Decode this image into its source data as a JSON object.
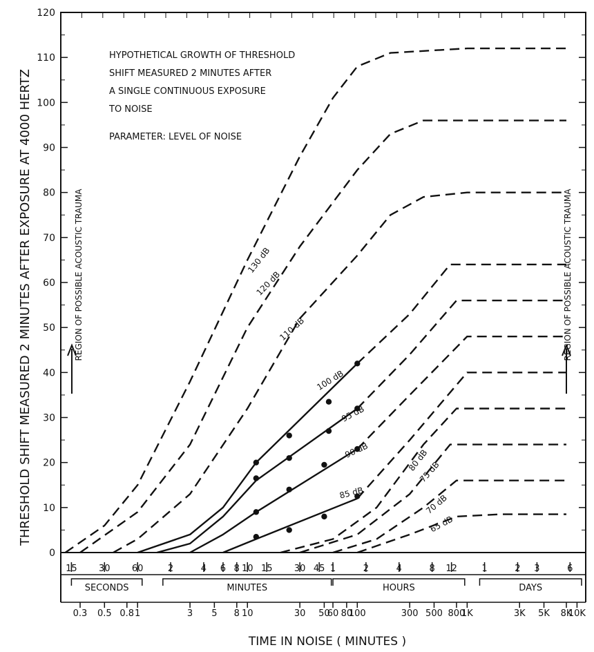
{
  "chart_data": {
    "type": "line",
    "title": "",
    "annotation": [
      "HYPOTHETICAL GROWTH OF THRESHOLD",
      "SHIFT MEASURED 2 MINUTES AFTER",
      "A SINGLE CONTINUOUS EXPOSURE",
      "TO NOISE"
    ],
    "parameter_note": "PARAMETER: LEVEL OF NOISE",
    "ylabel": "THRESHOLD SHIFT MEASURED 2 MINUTES AFTER EXPOSURE AT 4000 HERTZ",
    "xlabel": "TIME IN NOISE ( MINUTES )",
    "y_scale": "linear",
    "x_scale": "log",
    "ylim": [
      0,
      120
    ],
    "xlim": [
      0.2,
      12000
    ],
    "y_ticks": [
      "0",
      "10",
      "20",
      "30",
      "40",
      "50",
      "60",
      "70",
      "80",
      "90",
      "100",
      "110",
      "120"
    ],
    "x_ticks_minutes": [
      {
        "x": 0.3,
        "label": "0.3"
      },
      {
        "x": 0.5,
        "label": "0.5"
      },
      {
        "x": 0.8,
        "label": "0.8"
      },
      {
        "x": 1,
        "label": "1"
      },
      {
        "x": 3,
        "label": "3"
      },
      {
        "x": 5,
        "label": "5"
      },
      {
        "x": 8,
        "label": "8"
      },
      {
        "x": 10,
        "label": "10"
      },
      {
        "x": 30,
        "label": "30"
      },
      {
        "x": 50,
        "label": "50"
      },
      {
        "x": 60,
        "label": "60"
      },
      {
        "x": 80,
        "label": "80"
      },
      {
        "x": 100,
        "label": "100"
      },
      {
        "x": 300,
        "label": "300"
      },
      {
        "x": 500,
        "label": "500"
      },
      {
        "x": 800,
        "label": "800"
      },
      {
        "x": 1000,
        "label": "1K"
      },
      {
        "x": 3000,
        "label": "3K"
      },
      {
        "x": 5000,
        "label": "5K"
      },
      {
        "x": 8000,
        "label": "8K"
      },
      {
        "x": 10000,
        "label": "10K"
      }
    ],
    "time_scale": [
      {
        "x": 0.25,
        "label": "15"
      },
      {
        "x": 0.5,
        "label": "30"
      },
      {
        "x": 1,
        "label": "60"
      },
      {
        "x": 2,
        "label": "2"
      },
      {
        "x": 4,
        "label": "4"
      },
      {
        "x": 6,
        "label": "6"
      },
      {
        "x": 8,
        "label": "8"
      },
      {
        "x": 10,
        "label": "10"
      },
      {
        "x": 15,
        "label": "15"
      },
      {
        "x": 30,
        "label": "30"
      },
      {
        "x": 45,
        "label": "45"
      },
      {
        "x": 60,
        "label": "1"
      },
      {
        "x": 120,
        "label": "2"
      },
      {
        "x": 240,
        "label": "4"
      },
      {
        "x": 480,
        "label": "8"
      },
      {
        "x": 720,
        "label": "12"
      },
      {
        "x": 1440,
        "label": "1"
      },
      {
        "x": 2880,
        "label": "2"
      },
      {
        "x": 4320,
        "label": "3"
      },
      {
        "x": 8640,
        "label": "6"
      }
    ],
    "time_units": [
      {
        "from": 0.25,
        "to": 1,
        "label": "SECONDS"
      },
      {
        "from": 2,
        "to": 1000,
        "label": "MINUTES"
      },
      {
        "from": 60,
        "to": 1000,
        "label": "HOURS"
      },
      {
        "from": 1440,
        "to": 10000,
        "label": "DAYS"
      }
    ],
    "side_labels": [
      "REGION OF POSSIBLE ACOUSTIC TRAUMA",
      "REGION OF POSSIBLE ACOUSTIC TRAUMA"
    ],
    "series": [
      {
        "name": "130 dB",
        "points": [
          [
            0.22,
            0
          ],
          [
            0.5,
            6
          ],
          [
            1,
            15
          ],
          [
            3,
            38
          ],
          [
            10,
            65
          ],
          [
            30,
            88
          ],
          [
            60,
            101
          ],
          [
            100,
            108
          ],
          [
            200,
            111
          ],
          [
            1000,
            112
          ],
          [
            8000,
            112
          ]
        ],
        "label_at": [
          11,
          62
        ]
      },
      {
        "name": "120 dB",
        "points": [
          [
            0.3,
            0
          ],
          [
            1,
            9
          ],
          [
            3,
            24
          ],
          [
            10,
            50
          ],
          [
            30,
            68
          ],
          [
            100,
            85
          ],
          [
            200,
            93
          ],
          [
            400,
            96
          ],
          [
            1000,
            96
          ],
          [
            8000,
            96
          ]
        ],
        "label_at": [
          13,
          57
        ]
      },
      {
        "name": "110 dB",
        "points": [
          [
            0.6,
            0
          ],
          [
            1,
            3
          ],
          [
            3,
            13
          ],
          [
            10,
            32
          ],
          [
            30,
            52
          ],
          [
            100,
            66
          ],
          [
            200,
            75
          ],
          [
            400,
            79
          ],
          [
            1000,
            80
          ],
          [
            8000,
            80
          ]
        ],
        "label_at": [
          21,
          47
        ]
      },
      {
        "name": "100 dB",
        "points": [
          [
            1,
            0
          ],
          [
            3,
            4
          ],
          [
            6,
            10
          ],
          [
            12,
            20
          ],
          [
            100,
            42
          ]
        ],
        "dashed_segment": [
          [
            100,
            42
          ],
          [
            300,
            53
          ],
          [
            700,
            64
          ],
          [
            8000,
            64
          ]
        ],
        "markers": [
          [
            12,
            20
          ],
          [
            24,
            26
          ],
          [
            55,
            33.5
          ],
          [
            100,
            42
          ]
        ],
        "label_at": [
          45,
          36
        ]
      },
      {
        "name": "95 dB",
        "points": [
          [
            1.5,
            0
          ],
          [
            3,
            2
          ],
          [
            6,
            8
          ],
          [
            12,
            16
          ],
          [
            100,
            32
          ]
        ],
        "dashed_segment": [
          [
            100,
            32
          ],
          [
            300,
            44
          ],
          [
            800,
            56
          ],
          [
            8000,
            56
          ]
        ],
        "markers": [
          [
            12,
            16.5
          ],
          [
            24,
            21
          ],
          [
            55,
            27
          ],
          [
            100,
            32
          ]
        ],
        "label_at": [
          75,
          29
        ]
      },
      {
        "name": "90 dB",
        "points": [
          [
            3,
            0
          ],
          [
            6,
            4
          ],
          [
            12,
            9
          ],
          [
            100,
            23
          ]
        ],
        "dashed_segment": [
          [
            100,
            23
          ],
          [
            300,
            35
          ],
          [
            1000,
            48
          ],
          [
            8000,
            48
          ]
        ],
        "markers": [
          [
            12,
            9
          ],
          [
            24,
            14
          ],
          [
            50,
            19.5
          ],
          [
            100,
            23
          ]
        ],
        "label_at": [
          80,
          21
        ]
      },
      {
        "name": "85 dB",
        "points": [
          [
            6,
            0
          ],
          [
            12,
            3
          ],
          [
            100,
            12
          ]
        ],
        "dashed_segment": [
          [
            100,
            12
          ],
          [
            300,
            25
          ],
          [
            1000,
            40
          ],
          [
            8000,
            40
          ]
        ],
        "markers": [
          [
            12,
            3.5
          ],
          [
            24,
            5
          ],
          [
            50,
            8
          ],
          [
            100,
            12.5
          ]
        ],
        "label_at": [
          70,
          12
        ]
      },
      {
        "name": "80 dB",
        "points": [
          [
            20,
            0
          ],
          [
            60,
            3
          ],
          [
            150,
            10
          ],
          [
            400,
            24
          ],
          [
            800,
            32
          ],
          [
            8000,
            32
          ]
        ],
        "label_at": [
          320,
          18
        ]
      },
      {
        "name": "75 dB",
        "points": [
          [
            30,
            0
          ],
          [
            100,
            4
          ],
          [
            300,
            13
          ],
          [
            700,
            24
          ],
          [
            8000,
            24
          ]
        ],
        "label_at": [
          400,
          15.5
        ]
      },
      {
        "name": "70 dB",
        "points": [
          [
            60,
            0
          ],
          [
            150,
            3
          ],
          [
            400,
            10
          ],
          [
            800,
            16
          ],
          [
            8000,
            16
          ]
        ],
        "label_at": [
          450,
          8.5
        ]
      },
      {
        "name": "65 dB",
        "points": [
          [
            100,
            0
          ],
          [
            300,
            4
          ],
          [
            800,
            8
          ],
          [
            2000,
            8.5
          ],
          [
            8000,
            8.5
          ]
        ],
        "label_at": [
          480,
          4.5
        ]
      }
    ]
  }
}
